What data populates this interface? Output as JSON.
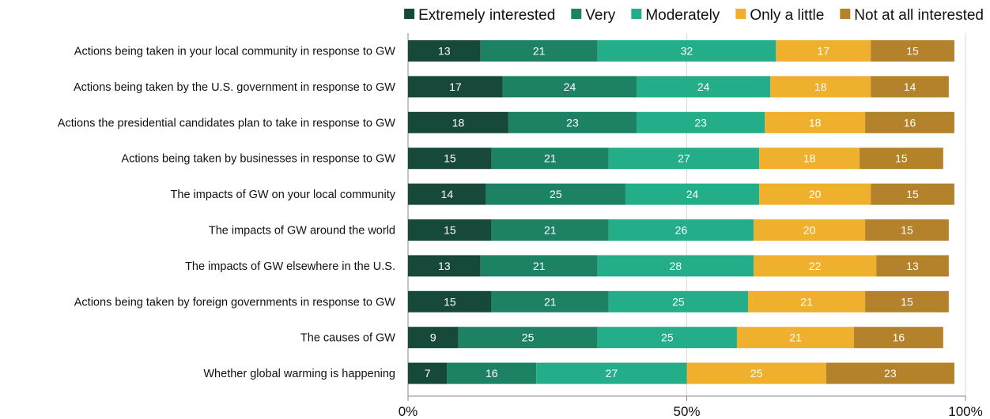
{
  "chart_data": {
    "type": "bar",
    "orientation": "horizontal",
    "stacked": true,
    "grid": true,
    "legend_placement": "top-right",
    "xlim": [
      0,
      100
    ],
    "x_ticks": [
      "0%",
      "50%",
      "100%"
    ],
    "categories": [
      "Actions being taken in your local community in response to GW",
      "Actions being taken by the U.S. government in response to GW",
      "Actions the presidential candidates plan to take in response to GW",
      "Actions being taken by businesses in response to GW",
      "The impacts of GW on your local community",
      "The impacts of GW around the world",
      "The impacts of GW elsewhere in the U.S.",
      "Actions being taken by foreign governments in response to GW",
      "The causes of GW",
      "Whether global warming is happening"
    ],
    "series": [
      {
        "name": "Extremely interested",
        "color": "#17493b",
        "values": [
          13,
          17,
          18,
          15,
          14,
          15,
          13,
          15,
          9,
          7
        ]
      },
      {
        "name": "Very",
        "color": "#1d8263",
        "values": [
          21,
          24,
          23,
          21,
          25,
          21,
          21,
          21,
          25,
          16
        ]
      },
      {
        "name": "Moderately",
        "color": "#23ad88",
        "values": [
          32,
          24,
          23,
          27,
          24,
          26,
          28,
          25,
          25,
          27
        ]
      },
      {
        "name": "Only a little",
        "color": "#efb02d",
        "values": [
          17,
          18,
          18,
          18,
          20,
          20,
          22,
          21,
          21,
          25
        ]
      },
      {
        "name": "Not at all interested",
        "color": "#b3822a",
        "values": [
          15,
          14,
          16,
          15,
          15,
          15,
          13,
          15,
          16,
          23
        ]
      }
    ]
  }
}
